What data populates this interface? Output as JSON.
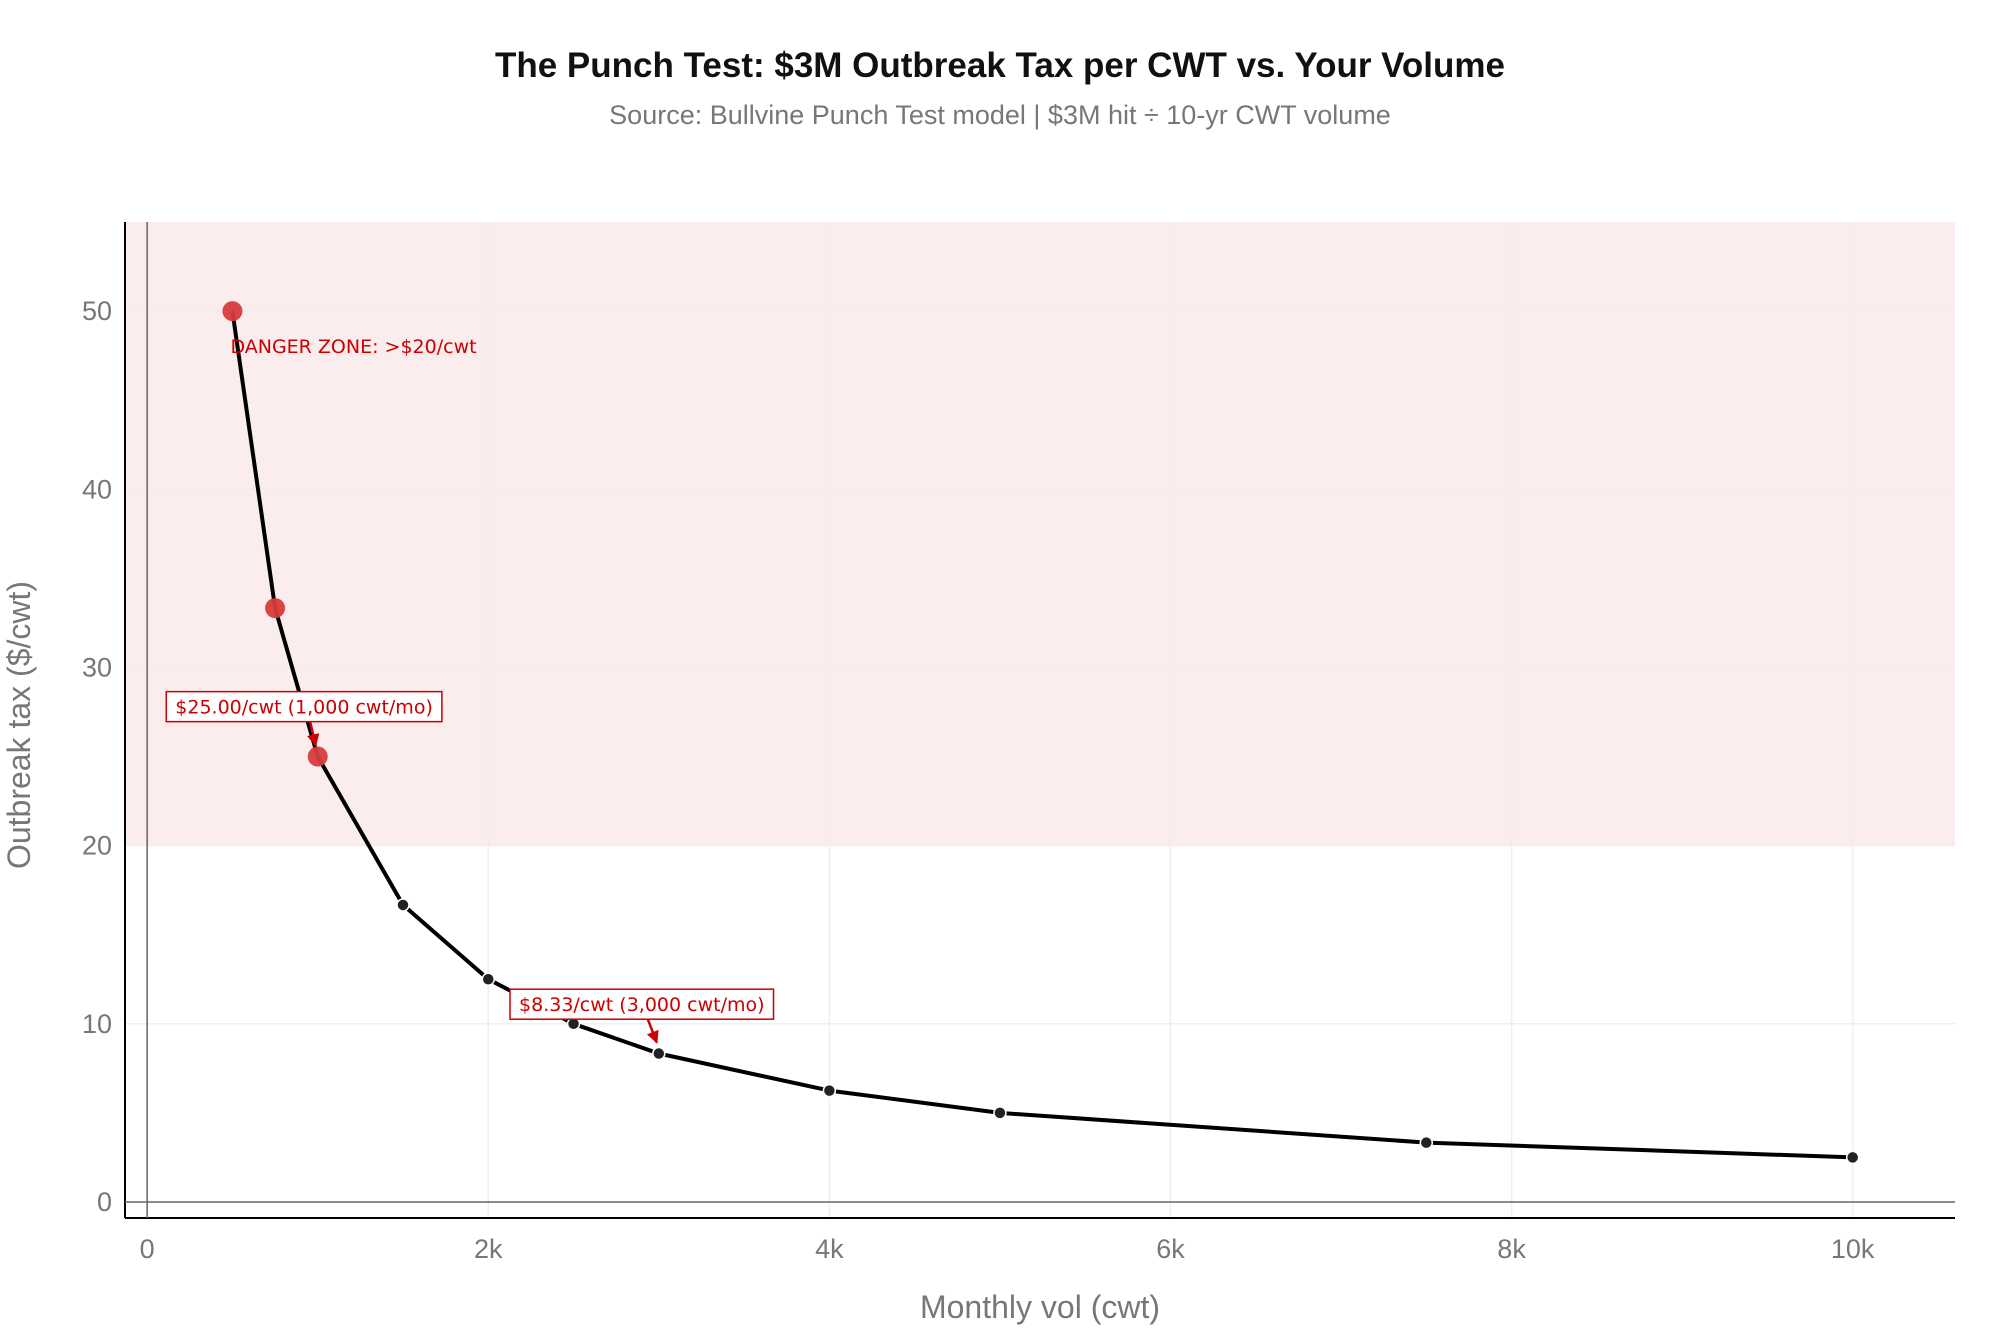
{
  "chart_data": {
    "type": "line",
    "title": "The Punch Test: $3M Outbreak Tax per CWT vs. Your Volume",
    "subtitle": "Source: Bullvine Punch Test model | $3M hit ÷ 10-yr CWT volume",
    "xlabel": "Monthly vol (cwt)",
    "ylabel": "Outbreak tax ($/cwt)",
    "xlim": [
      -130,
      10600
    ],
    "ylim": [
      -0.9,
      55
    ],
    "x_ticks": [
      0,
      2000,
      4000,
      6000,
      8000,
      10000
    ],
    "x_tick_labels": [
      "0",
      "2k",
      "4k",
      "6k",
      "8k",
      "10k"
    ],
    "y_ticks": [
      0,
      10,
      20,
      30,
      40,
      50
    ],
    "y_tick_labels": [
      "0",
      "10",
      "20",
      "30",
      "40",
      "50"
    ],
    "grid": true,
    "x": [
      500,
      750,
      1000,
      1500,
      2000,
      2500,
      3000,
      4000,
      5000,
      7500,
      10000
    ],
    "y": [
      50.0,
      33.33,
      25.0,
      16.67,
      12.5,
      10.0,
      8.33,
      6.25,
      5.0,
      3.33,
      2.5
    ],
    "danger_threshold": 20,
    "danger_label": "DANGER ZONE: >$20/cwt",
    "annotations": [
      {
        "x": 1000,
        "y": 25.0,
        "text": "$25.00/cwt   (1,000 cwt/mo)",
        "label_x": 920,
        "label_y": 27.8
      },
      {
        "x": 3000,
        "y": 8.33,
        "text": "$8.33/cwt   (3,000 cwt/mo)",
        "label_x": 2900,
        "label_y": 11.1
      }
    ],
    "colors": {
      "line": "#000000",
      "danger_marker": "#d73c3c",
      "normal_marker": "#222222",
      "danger_fill": "#fbeced",
      "annotation": "#cc0000",
      "grid": "#efefef",
      "axis": "#000000"
    }
  }
}
